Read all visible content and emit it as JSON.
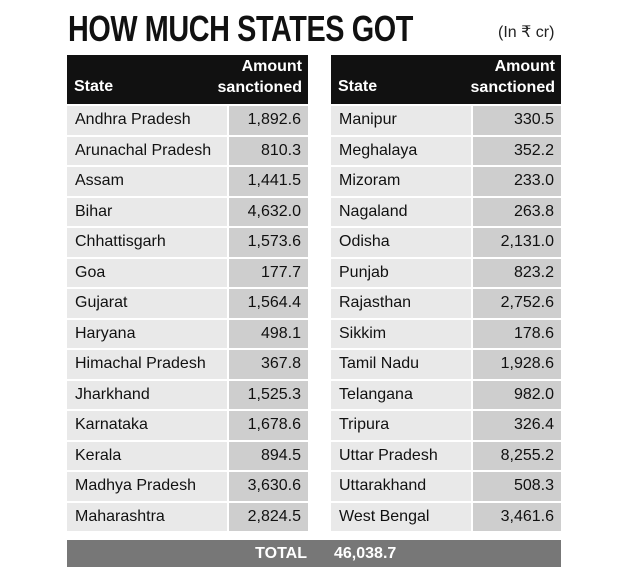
{
  "title": "HOW MUCH STATES GOT",
  "unit": "(In ₹ cr)",
  "tables": [
    {
      "header": {
        "state": "State",
        "amount": "Amount sanctioned"
      },
      "rows": [
        [
          "Andhra Pradesh",
          "1,892.6"
        ],
        [
          "Arunachal Pradesh",
          "810.3"
        ],
        [
          "Assam",
          "1,441.5"
        ],
        [
          "Bihar",
          "4,632.0"
        ],
        [
          "Chhattisgarh",
          "1,573.6"
        ],
        [
          "Goa",
          "177.7"
        ],
        [
          "Gujarat",
          "1,564.4"
        ],
        [
          "Haryana",
          "498.1"
        ],
        [
          "Himachal Pradesh",
          "367.8"
        ],
        [
          "Jharkhand",
          "1,525.3"
        ],
        [
          "Karnataka",
          "1,678.6"
        ],
        [
          "Kerala",
          "894.5"
        ],
        [
          "Madhya Pradesh",
          "3,630.6"
        ],
        [
          "Maharashtra",
          "2,824.5"
        ]
      ]
    },
    {
      "header": {
        "state": "State",
        "amount": "Amount sanctioned"
      },
      "rows": [
        [
          "Manipur",
          "330.5"
        ],
        [
          "Meghalaya",
          "352.2"
        ],
        [
          "Mizoram",
          "233.0"
        ],
        [
          "Nagaland",
          "263.8"
        ],
        [
          "Odisha",
          "2,131.0"
        ],
        [
          "Punjab",
          "823.2"
        ],
        [
          "Rajasthan",
          "2,752.6"
        ],
        [
          "Sikkim",
          "178.6"
        ],
        [
          "Tamil Nadu",
          "1,928.6"
        ],
        [
          "Telangana",
          "982.0"
        ],
        [
          "Tripura",
          "326.4"
        ],
        [
          "Uttar Pradesh",
          "8,255.2"
        ],
        [
          "Uttarakhand",
          "508.3"
        ],
        [
          "West Bengal",
          "3,461.6"
        ]
      ]
    }
  ],
  "total": {
    "label": "TOTAL",
    "value": "46,038.7"
  }
}
